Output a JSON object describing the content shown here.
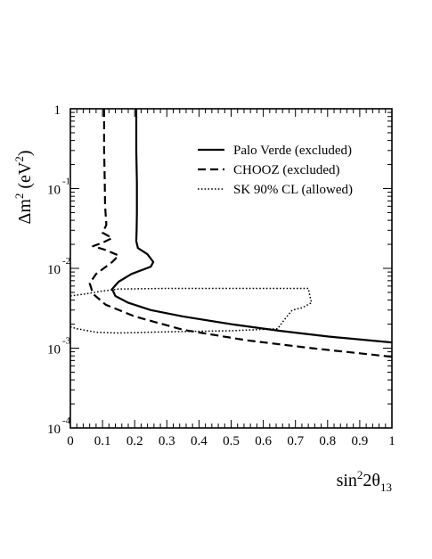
{
  "chart_data": {
    "type": "line",
    "title": "",
    "xlabel": {
      "base": "sin",
      "sup": "2",
      "mid": "2θ",
      "sub": "13"
    },
    "ylabel": {
      "base": "Δm",
      "sup": "2",
      "unit_open": " (eV",
      "unit_sup": "2",
      "unit_close": ")"
    },
    "xlim": [
      0,
      1
    ],
    "ylim": [
      0.0001,
      1
    ],
    "y_scale": "log",
    "x_ticks": [
      {
        "value": 0,
        "label": "0"
      },
      {
        "value": 0.1,
        "label": "0.1"
      },
      {
        "value": 0.2,
        "label": "0.2"
      },
      {
        "value": 0.3,
        "label": "0.3"
      },
      {
        "value": 0.4,
        "label": "0.4"
      },
      {
        "value": 0.5,
        "label": "0.5"
      },
      {
        "value": 0.6,
        "label": "0.6"
      },
      {
        "value": 0.7,
        "label": "0.7"
      },
      {
        "value": 0.8,
        "label": "0.8"
      },
      {
        "value": 0.9,
        "label": "0.9"
      },
      {
        "value": 1,
        "label": "1"
      }
    ],
    "y_ticks": [
      {
        "value": 1,
        "base": "1",
        "exp": ""
      },
      {
        "value": 0.1,
        "base": "10",
        "exp": "-1"
      },
      {
        "value": 0.01,
        "base": "10",
        "exp": "-2"
      },
      {
        "value": 0.001,
        "base": "10",
        "exp": "-3"
      },
      {
        "value": 0.0001,
        "base": "10",
        "exp": "-4"
      }
    ],
    "grid": false,
    "legend_position": "top-right",
    "series": [
      {
        "name": "Palo Verde (excluded)",
        "dash": "solid",
        "points": [
          [
            0.205,
            1
          ],
          [
            0.205,
            0.3
          ],
          [
            0.207,
            0.12
          ],
          [
            0.207,
            0.05
          ],
          [
            0.206,
            0.03
          ],
          [
            0.205,
            0.022
          ],
          [
            0.21,
            0.018
          ],
          [
            0.24,
            0.015
          ],
          [
            0.258,
            0.012
          ],
          [
            0.25,
            0.0105
          ],
          [
            0.19,
            0.0085
          ],
          [
            0.15,
            0.0068
          ],
          [
            0.13,
            0.0055
          ],
          [
            0.14,
            0.0045
          ],
          [
            0.18,
            0.0037
          ],
          [
            0.25,
            0.003
          ],
          [
            0.35,
            0.0025
          ],
          [
            0.5,
            0.002
          ],
          [
            0.65,
            0.00165
          ],
          [
            0.8,
            0.0014
          ],
          [
            1.0,
            0.00118
          ]
        ]
      },
      {
        "name": "CHOOZ (excluded)",
        "dash": "dashed",
        "points": [
          [
            0.105,
            1
          ],
          [
            0.105,
            0.3
          ],
          [
            0.107,
            0.12
          ],
          [
            0.108,
            0.06
          ],
          [
            0.112,
            0.035
          ],
          [
            0.1,
            0.028
          ],
          [
            0.13,
            0.024
          ],
          [
            0.1,
            0.021
          ],
          [
            0.07,
            0.019
          ],
          [
            0.11,
            0.017
          ],
          [
            0.15,
            0.0145
          ],
          [
            0.13,
            0.012
          ],
          [
            0.08,
            0.0085
          ],
          [
            0.06,
            0.0065
          ],
          [
            0.07,
            0.0048
          ],
          [
            0.11,
            0.0035
          ],
          [
            0.2,
            0.0025
          ],
          [
            0.35,
            0.0017
          ],
          [
            0.55,
            0.00125
          ],
          [
            0.75,
            0.001
          ],
          [
            1.0,
            0.00078
          ]
        ]
      },
      {
        "name": "SK 90% CL (allowed)",
        "dash": "dotted",
        "points": [
          [
            0.0,
            0.0045
          ],
          [
            0.05,
            0.0048
          ],
          [
            0.1,
            0.0052
          ],
          [
            0.15,
            0.0055
          ],
          [
            0.3,
            0.0056
          ],
          [
            0.5,
            0.0056
          ],
          [
            0.74,
            0.0056
          ],
          [
            0.745,
            0.0045
          ],
          [
            0.75,
            0.0037
          ],
          [
            0.72,
            0.0032
          ],
          [
            0.69,
            0.003
          ],
          [
            0.67,
            0.0024
          ],
          [
            0.655,
            0.002
          ],
          [
            0.645,
            0.00175
          ],
          [
            0.5,
            0.00165
          ],
          [
            0.3,
            0.0016
          ],
          [
            0.15,
            0.00155
          ],
          [
            0.08,
            0.00158
          ],
          [
            0.02,
            0.00175
          ],
          [
            0.0,
            0.00185
          ]
        ]
      }
    ]
  }
}
